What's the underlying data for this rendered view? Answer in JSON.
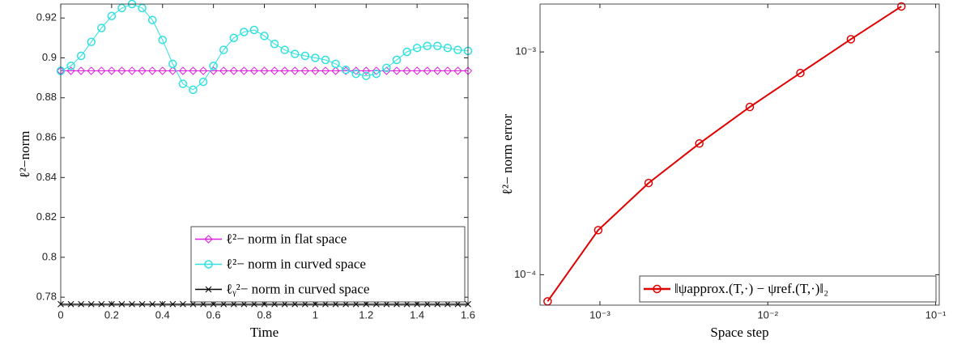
{
  "chart_data": [
    {
      "type": "line",
      "x_label": "Time",
      "y_label": "ℓ²−norm",
      "xlim": [
        0,
        1.6
      ],
      "ylim": [
        0.776,
        0.927
      ],
      "xticks": [
        0,
        0.2,
        0.4,
        0.6,
        0.8,
        1,
        1.2,
        1.4,
        1.6
      ],
      "yticks": [
        0.78,
        0.8,
        0.82,
        0.84,
        0.86,
        0.88,
        0.9,
        0.92
      ],
      "legend": "lower right",
      "x": [
        0,
        0.04,
        0.08,
        0.12,
        0.16,
        0.2,
        0.24,
        0.28,
        0.32,
        0.36,
        0.4,
        0.44,
        0.48,
        0.52,
        0.56,
        0.6,
        0.64,
        0.68,
        0.72,
        0.76,
        0.8,
        0.84,
        0.88,
        0.92,
        0.96,
        1,
        1.04,
        1.08,
        1.12,
        1.16,
        1.2,
        1.24,
        1.28,
        1.32,
        1.36,
        1.4,
        1.44,
        1.48,
        1.52,
        1.56,
        1.6
      ],
      "series": [
        {
          "name": "ℓ²− norm in flat space",
          "color": "#e020e0",
          "marker": "diamond",
          "values": [
            0.8935,
            0.8935,
            0.8935,
            0.8935,
            0.8935,
            0.8935,
            0.8935,
            0.8935,
            0.8935,
            0.8935,
            0.8935,
            0.8935,
            0.8935,
            0.8935,
            0.8935,
            0.8935,
            0.8935,
            0.8935,
            0.8935,
            0.8935,
            0.8935,
            0.8935,
            0.8935,
            0.8935,
            0.8935,
            0.8935,
            0.8935,
            0.8935,
            0.8935,
            0.8935,
            0.8935,
            0.8935,
            0.8935,
            0.8935,
            0.8935,
            0.8935,
            0.8935,
            0.8935,
            0.8935,
            0.8935,
            0.8935
          ]
        },
        {
          "name": "ℓ²− norm in curved space",
          "color": "#30e0e0",
          "marker": "circle",
          "values": [
            0.8935,
            0.896,
            0.901,
            0.908,
            0.915,
            0.921,
            0.925,
            0.927,
            0.925,
            0.919,
            0.909,
            0.897,
            0.887,
            0.884,
            0.888,
            0.896,
            0.904,
            0.91,
            0.913,
            0.914,
            0.911,
            0.907,
            0.904,
            0.902,
            0.901,
            0.9,
            0.899,
            0.897,
            0.894,
            0.892,
            0.891,
            0.892,
            0.895,
            0.899,
            0.903,
            0.905,
            0.906,
            0.906,
            0.905,
            0.904,
            0.9035
          ]
        },
        {
          "name": "ℓᵧ²− norm in curved space",
          "color": "#000000",
          "marker": "x",
          "values": [
            0.7765,
            0.7765,
            0.7765,
            0.7765,
            0.7765,
            0.7765,
            0.7765,
            0.7765,
            0.7765,
            0.7765,
            0.7765,
            0.7765,
            0.7765,
            0.7765,
            0.7765,
            0.7765,
            0.7765,
            0.7765,
            0.7765,
            0.7765,
            0.7765,
            0.7765,
            0.7765,
            0.7765,
            0.7765,
            0.7765,
            0.7765,
            0.7765,
            0.7765,
            0.7765,
            0.7765,
            0.7765,
            0.7765,
            0.7765,
            0.7765,
            0.7765,
            0.7765,
            0.7765,
            0.7765,
            0.7765,
            0.7765
          ]
        }
      ]
    },
    {
      "type": "line",
      "x_label": "Space step",
      "y_label": "ℓ²− norm error",
      "xscale": "log",
      "yscale": "log",
      "xlim": [
        0.00044,
        0.105
      ],
      "ylim": [
        7.3e-05,
        0.00164
      ],
      "xticks": [
        {
          "value": 0.001,
          "label": "10⁻³"
        },
        {
          "value": 0.01,
          "label": "10⁻²"
        },
        {
          "value": 0.1,
          "label": "10⁻¹"
        }
      ],
      "yticks": [
        {
          "value": 0.0001,
          "label": "10⁻⁴"
        },
        {
          "value": 0.001,
          "label": "10⁻³"
        }
      ],
      "legend": "lower right",
      "x": [
        0.000488,
        0.000977,
        0.00195,
        0.00391,
        0.00781,
        0.015625,
        0.03125,
        0.0625
      ],
      "series": [
        {
          "name": "‖ψapprox.(T,·) − ψref.(T,·)‖₂",
          "color": "#e00000",
          "marker": "circle",
          "values": [
            7.59e-05,
            0.0001585,
            0.000258,
            0.000388,
            0.000566,
            0.000804,
            0.00114,
            0.0016
          ]
        }
      ]
    }
  ]
}
